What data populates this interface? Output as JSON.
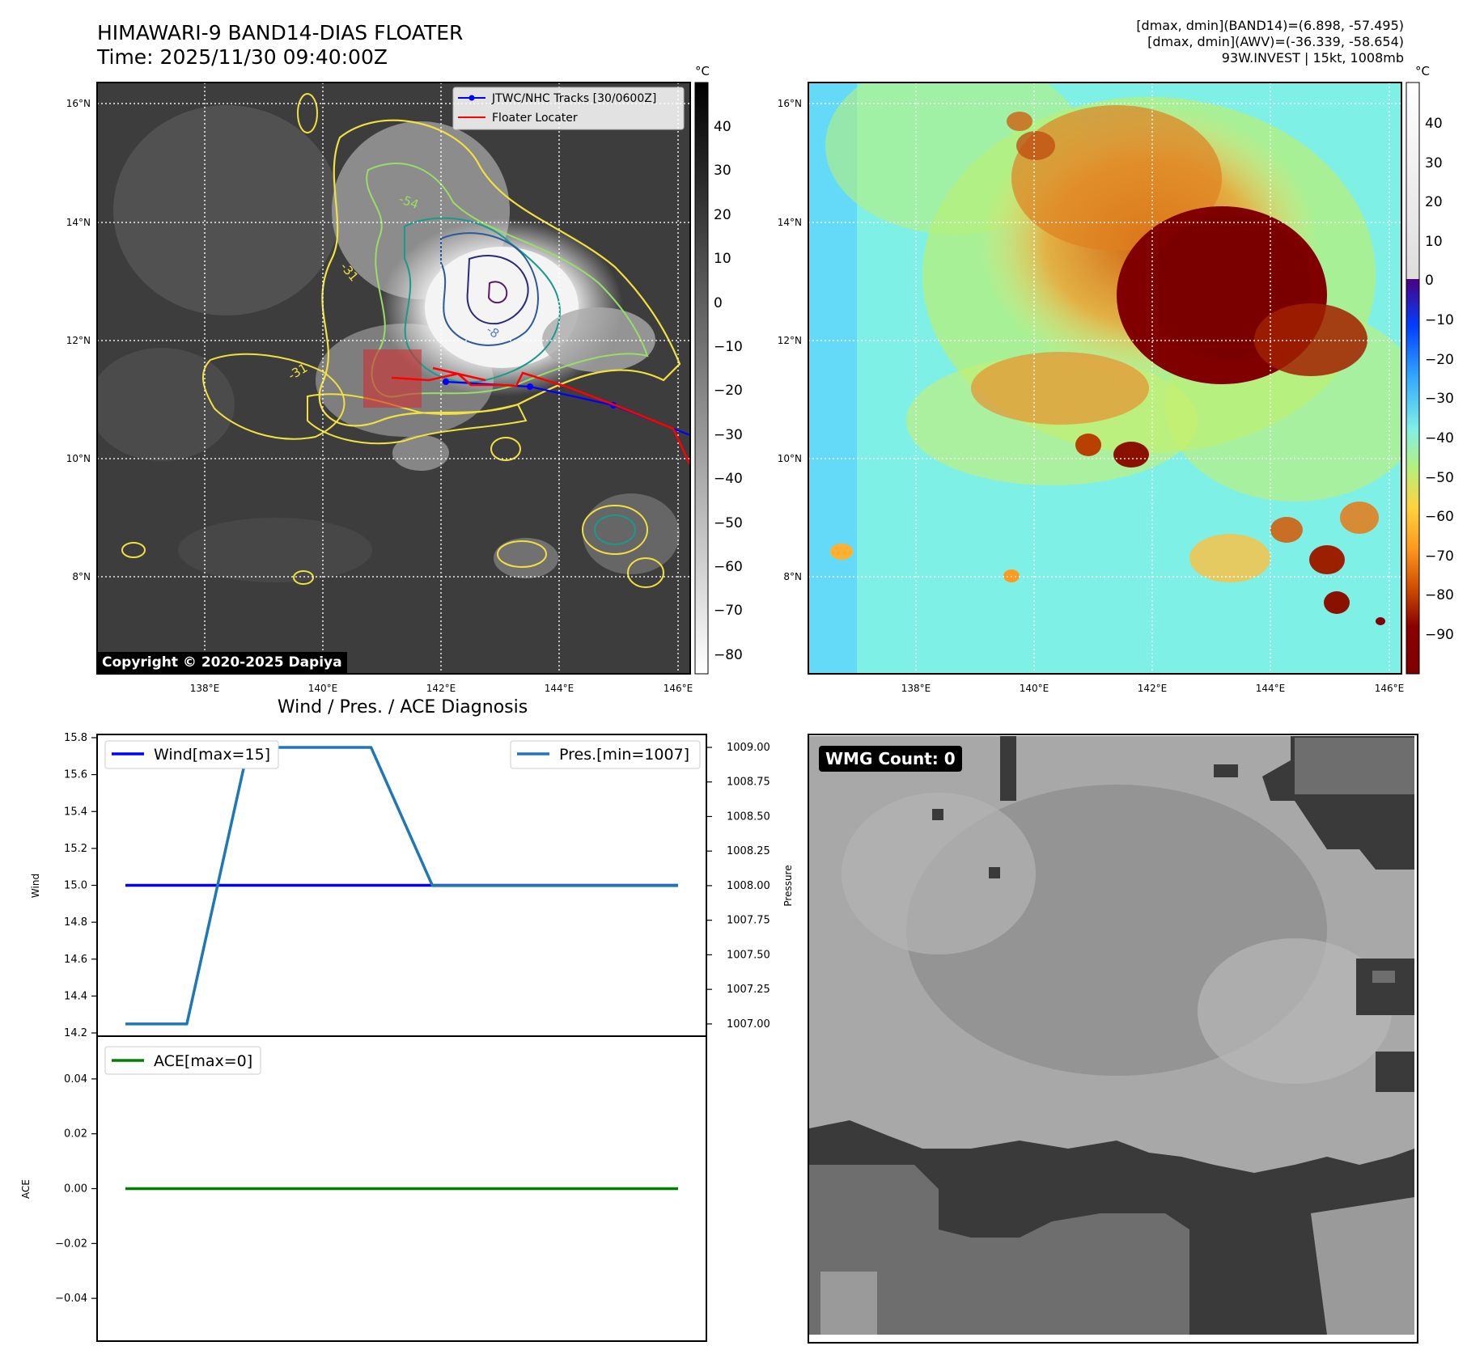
{
  "header": {
    "title_line1": "HIMAWARI-9 BAND14-DIAS FLOATER",
    "title_line2": "Time: 2025/11/30 09:40:00Z",
    "info_line1": "[dmax, dmin](BAND14)=(6.898, -57.495)",
    "info_line2": "[dmax, dmin](AWV)=(-36.339, -58.654)",
    "info_line3": "93W.INVEST | 15kt, 1008mb"
  },
  "map": {
    "lat_labels": [
      "16°N",
      "14°N",
      "12°N",
      "10°N",
      "8°N"
    ],
    "lon_labels": [
      "138°E",
      "140°E",
      "142°E",
      "144°E",
      "146°E"
    ],
    "legend": [
      "JTWC/NHC Tracks [30/0600Z]",
      "Floater Locater"
    ],
    "copyright": "Copyright © 2020-2025 Dapiya",
    "contour_labels": [
      "-54",
      "-31",
      "-31",
      "-8"
    ],
    "colorbar_unit": "°C",
    "colorbar_left_ticks": [
      "40",
      "30",
      "20",
      "10",
      "0",
      "−10",
      "−20",
      "−30",
      "−40",
      "−50",
      "−60",
      "−70",
      "−80"
    ],
    "colorbar_right_ticks": [
      "40",
      "30",
      "20",
      "10",
      "0",
      "−10",
      "−20",
      "−30",
      "−40",
      "−50",
      "−60",
      "−70",
      "−80",
      "−90"
    ],
    "colors": {
      "track": "#0000ff",
      "floater": "#ff0000"
    }
  },
  "diagnosis_title": "Wind / Pres. / ACE Diagnosis",
  "wmg_label": "WMG Count: 0",
  "chart_data": [
    {
      "type": "line",
      "title": "Wind / Pres. / ACE Diagnosis",
      "ylabel": "Wind",
      "y2label": "Pressure",
      "ylim": [
        14.2,
        15.8
      ],
      "y2lim": [
        1006.935,
        1009.07
      ],
      "yticks": [
        "14.2",
        "14.4",
        "14.6",
        "14.8",
        "15.0",
        "15.2",
        "15.4",
        "15.6",
        "15.8"
      ],
      "y2ticks": [
        "1007.00",
        "1007.25",
        "1007.50",
        "1007.75",
        "1008.00",
        "1008.25",
        "1008.50",
        "1008.75",
        "1009.00"
      ],
      "x": [
        0,
        1,
        2,
        3,
        4,
        5,
        6,
        7,
        8,
        9
      ],
      "series": [
        {
          "name": "Wind[max=15]",
          "axis": "left",
          "color": "#0000ff",
          "values": [
            15,
            15,
            15,
            15,
            15,
            15,
            15,
            15,
            15,
            15
          ]
        },
        {
          "name": "Pres.[min=1007]",
          "axis": "right",
          "color": "#1f77b4",
          "values": [
            1007,
            1007,
            1009,
            1009,
            1009,
            1008,
            1008,
            1008,
            1008,
            1008
          ]
        }
      ]
    },
    {
      "type": "line",
      "ylabel": "ACE",
      "ylim": [
        -0.055,
        0.055
      ],
      "yticks": [
        "0.04",
        "0.02",
        "0.00",
        "−0.02",
        "−0.04"
      ],
      "x": [
        0,
        1,
        2,
        3,
        4,
        5,
        6,
        7,
        8,
        9
      ],
      "series": [
        {
          "name": "ACE[max=0]",
          "color": "#008000",
          "values": [
            0,
            0,
            0,
            0,
            0,
            0,
            0,
            0,
            0,
            0
          ]
        }
      ]
    }
  ]
}
